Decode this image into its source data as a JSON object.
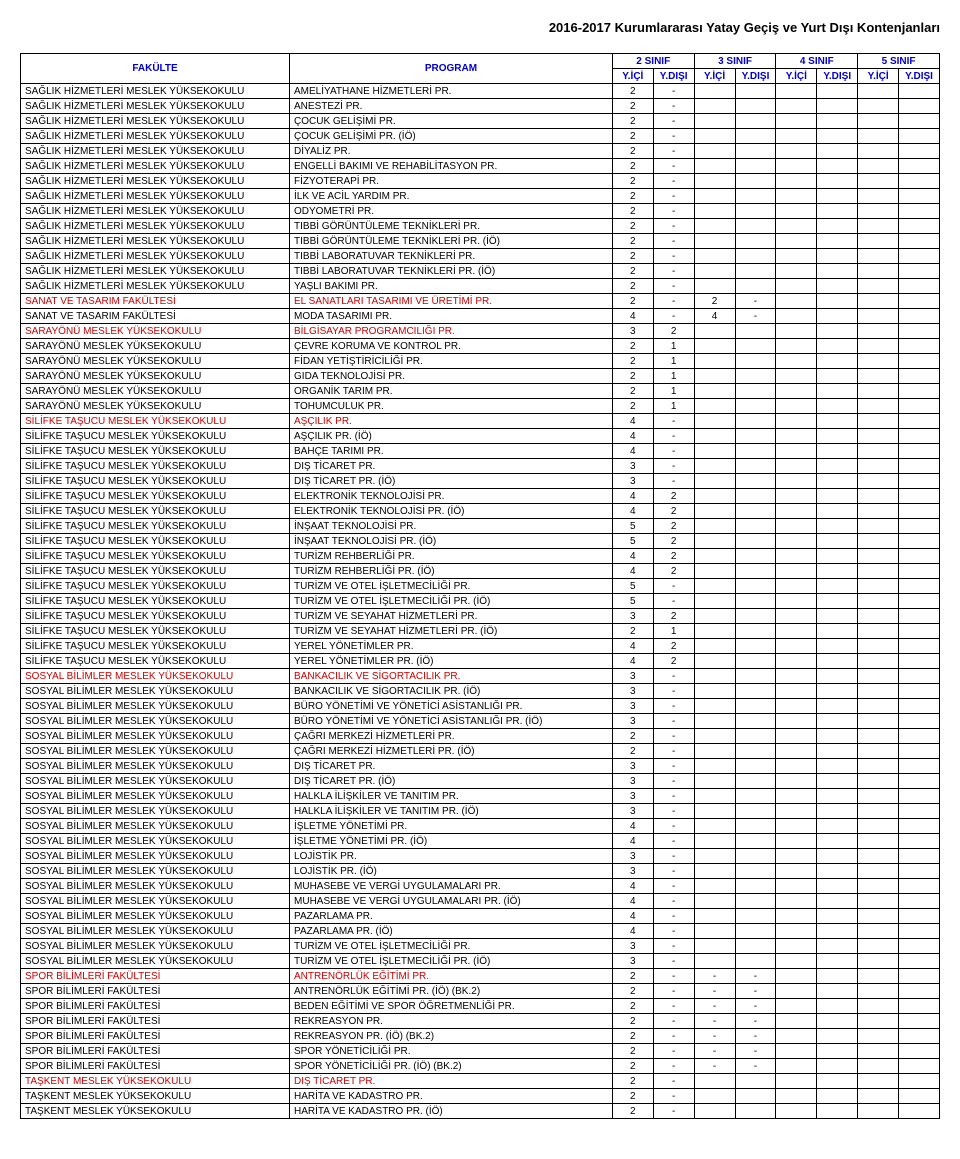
{
  "document_title": "2016-2017 Kurumlararası Yatay Geçiş ve Yurt Dışı Kontenjanları",
  "header": {
    "fakulte": "FAKÜLTE",
    "program": "PROGRAM",
    "sinif2": "2 SINIF",
    "sinif3": "3 SINIF",
    "sinif4": "4 SINIF",
    "sinif5": "5 SINIF",
    "yici": "Y.İÇİ",
    "ydisi": "Y.DIŞI"
  },
  "rows": [
    {
      "f": "SAĞLIK HİZMETLERİ MESLEK YÜKSEKOKULU",
      "p": "AMELİYATHANE HİZMETLERİ PR.",
      "red": false,
      "c2i": "2",
      "c2d": "-",
      "c3i": "",
      "c3d": "",
      "c4i": "",
      "c4d": "",
      "c5i": "",
      "c5d": ""
    },
    {
      "f": "SAĞLIK HİZMETLERİ MESLEK YÜKSEKOKULU",
      "p": "ANESTEZİ PR.",
      "red": false,
      "c2i": "2",
      "c2d": "-",
      "c3i": "",
      "c3d": "",
      "c4i": "",
      "c4d": "",
      "c5i": "",
      "c5d": ""
    },
    {
      "f": "SAĞLIK HİZMETLERİ MESLEK YÜKSEKOKULU",
      "p": "ÇOCUK GELİŞİMİ PR.",
      "red": false,
      "c2i": "2",
      "c2d": "-",
      "c3i": "",
      "c3d": "",
      "c4i": "",
      "c4d": "",
      "c5i": "",
      "c5d": ""
    },
    {
      "f": "SAĞLIK HİZMETLERİ MESLEK YÜKSEKOKULU",
      "p": "ÇOCUK GELİŞİMİ PR. (İÖ)",
      "red": false,
      "c2i": "2",
      "c2d": "-",
      "c3i": "",
      "c3d": "",
      "c4i": "",
      "c4d": "",
      "c5i": "",
      "c5d": ""
    },
    {
      "f": "SAĞLIK HİZMETLERİ MESLEK YÜKSEKOKULU",
      "p": "DİYALİZ PR.",
      "red": false,
      "c2i": "2",
      "c2d": "-",
      "c3i": "",
      "c3d": "",
      "c4i": "",
      "c4d": "",
      "c5i": "",
      "c5d": ""
    },
    {
      "f": "SAĞLIK HİZMETLERİ MESLEK YÜKSEKOKULU",
      "p": "ENGELLİ BAKIMI VE REHABİLİTASYON PR.",
      "red": false,
      "c2i": "2",
      "c2d": "-",
      "c3i": "",
      "c3d": "",
      "c4i": "",
      "c4d": "",
      "c5i": "",
      "c5d": ""
    },
    {
      "f": "SAĞLIK HİZMETLERİ MESLEK YÜKSEKOKULU",
      "p": "FİZYOTERAPİ PR.",
      "red": false,
      "c2i": "2",
      "c2d": "-",
      "c3i": "",
      "c3d": "",
      "c4i": "",
      "c4d": "",
      "c5i": "",
      "c5d": ""
    },
    {
      "f": "SAĞLIK HİZMETLERİ MESLEK YÜKSEKOKULU",
      "p": "İLK VE ACİL YARDIM PR.",
      "red": false,
      "c2i": "2",
      "c2d": "-",
      "c3i": "",
      "c3d": "",
      "c4i": "",
      "c4d": "",
      "c5i": "",
      "c5d": ""
    },
    {
      "f": "SAĞLIK HİZMETLERİ MESLEK YÜKSEKOKULU",
      "p": "ODYOMETRİ PR.",
      "red": false,
      "c2i": "2",
      "c2d": "-",
      "c3i": "",
      "c3d": "",
      "c4i": "",
      "c4d": "",
      "c5i": "",
      "c5d": ""
    },
    {
      "f": "SAĞLIK HİZMETLERİ MESLEK YÜKSEKOKULU",
      "p": "TIBBİ GÖRÜNTÜLEME TEKNİKLERİ PR.",
      "red": false,
      "c2i": "2",
      "c2d": "-",
      "c3i": "",
      "c3d": "",
      "c4i": "",
      "c4d": "",
      "c5i": "",
      "c5d": ""
    },
    {
      "f": "SAĞLIK HİZMETLERİ MESLEK YÜKSEKOKULU",
      "p": "TIBBİ GÖRÜNTÜLEME TEKNİKLERİ PR. (İÖ)",
      "red": false,
      "c2i": "2",
      "c2d": "-",
      "c3i": "",
      "c3d": "",
      "c4i": "",
      "c4d": "",
      "c5i": "",
      "c5d": ""
    },
    {
      "f": "SAĞLIK HİZMETLERİ MESLEK YÜKSEKOKULU",
      "p": "TIBBİ LABORATUVAR TEKNİKLERİ PR.",
      "red": false,
      "c2i": "2",
      "c2d": "-",
      "c3i": "",
      "c3d": "",
      "c4i": "",
      "c4d": "",
      "c5i": "",
      "c5d": ""
    },
    {
      "f": "SAĞLIK HİZMETLERİ MESLEK YÜKSEKOKULU",
      "p": "TIBBİ LABORATUVAR TEKNİKLERİ PR. (İÖ)",
      "red": false,
      "c2i": "2",
      "c2d": "-",
      "c3i": "",
      "c3d": "",
      "c4i": "",
      "c4d": "",
      "c5i": "",
      "c5d": ""
    },
    {
      "f": "SAĞLIK HİZMETLERİ MESLEK YÜKSEKOKULU",
      "p": "YAŞLI BAKIMI PR.",
      "red": false,
      "c2i": "2",
      "c2d": "-",
      "c3i": "",
      "c3d": "",
      "c4i": "",
      "c4d": "",
      "c5i": "",
      "c5d": ""
    },
    {
      "f": "SANAT VE TASARIM FAKÜLTESİ",
      "p": "EL SANATLARI TASARIMI VE ÜRETİMİ PR.",
      "red": true,
      "c2i": "2",
      "c2d": "-",
      "c3i": "2",
      "c3d": "-",
      "c4i": "",
      "c4d": "",
      "c5i": "",
      "c5d": ""
    },
    {
      "f": "SANAT VE TASARIM FAKÜLTESİ",
      "p": "MODA TASARIMI PR.",
      "red": false,
      "c2i": "4",
      "c2d": "-",
      "c3i": "4",
      "c3d": "-",
      "c4i": "",
      "c4d": "",
      "c5i": "",
      "c5d": ""
    },
    {
      "f": "SARAYÖNÜ MESLEK YÜKSEKOKULU",
      "p": "BİLGİSAYAR PROGRAMCILIĞI PR.",
      "red": true,
      "c2i": "3",
      "c2d": "2",
      "c3i": "",
      "c3d": "",
      "c4i": "",
      "c4d": "",
      "c5i": "",
      "c5d": ""
    },
    {
      "f": "SARAYÖNÜ MESLEK YÜKSEKOKULU",
      "p": "ÇEVRE KORUMA VE KONTROL PR.",
      "red": false,
      "c2i": "2",
      "c2d": "1",
      "c3i": "",
      "c3d": "",
      "c4i": "",
      "c4d": "",
      "c5i": "",
      "c5d": ""
    },
    {
      "f": "SARAYÖNÜ MESLEK YÜKSEKOKULU",
      "p": "FİDAN YETİŞTİRİCİLİĞİ PR.",
      "red": false,
      "c2i": "2",
      "c2d": "1",
      "c3i": "",
      "c3d": "",
      "c4i": "",
      "c4d": "",
      "c5i": "",
      "c5d": ""
    },
    {
      "f": "SARAYÖNÜ MESLEK YÜKSEKOKULU",
      "p": "GIDA TEKNOLOJİSİ PR.",
      "red": false,
      "c2i": "2",
      "c2d": "1",
      "c3i": "",
      "c3d": "",
      "c4i": "",
      "c4d": "",
      "c5i": "",
      "c5d": ""
    },
    {
      "f": "SARAYÖNÜ MESLEK YÜKSEKOKULU",
      "p": "ORGANİK TARIM PR.",
      "red": false,
      "c2i": "2",
      "c2d": "1",
      "c3i": "",
      "c3d": "",
      "c4i": "",
      "c4d": "",
      "c5i": "",
      "c5d": ""
    },
    {
      "f": "SARAYÖNÜ MESLEK YÜKSEKOKULU",
      "p": "TOHUMCULUK PR.",
      "red": false,
      "c2i": "2",
      "c2d": "1",
      "c3i": "",
      "c3d": "",
      "c4i": "",
      "c4d": "",
      "c5i": "",
      "c5d": ""
    },
    {
      "f": "SİLİFKE TAŞUCU MESLEK YÜKSEKOKULU",
      "p": "AŞÇILIK PR.",
      "red": true,
      "c2i": "4",
      "c2d": "-",
      "c3i": "",
      "c3d": "",
      "c4i": "",
      "c4d": "",
      "c5i": "",
      "c5d": ""
    },
    {
      "f": "SİLİFKE TAŞUCU MESLEK YÜKSEKOKULU",
      "p": "AŞÇILIK PR. (İÖ)",
      "red": false,
      "c2i": "4",
      "c2d": "-",
      "c3i": "",
      "c3d": "",
      "c4i": "",
      "c4d": "",
      "c5i": "",
      "c5d": ""
    },
    {
      "f": "SİLİFKE TAŞUCU MESLEK YÜKSEKOKULU",
      "p": "BAHÇE TARIMI PR.",
      "red": false,
      "c2i": "4",
      "c2d": "-",
      "c3i": "",
      "c3d": "",
      "c4i": "",
      "c4d": "",
      "c5i": "",
      "c5d": ""
    },
    {
      "f": "SİLİFKE TAŞUCU MESLEK YÜKSEKOKULU",
      "p": "DIŞ TİCARET PR.",
      "red": false,
      "c2i": "3",
      "c2d": "-",
      "c3i": "",
      "c3d": "",
      "c4i": "",
      "c4d": "",
      "c5i": "",
      "c5d": ""
    },
    {
      "f": "SİLİFKE TAŞUCU MESLEK YÜKSEKOKULU",
      "p": "DIŞ TİCARET PR. (İÖ)",
      "red": false,
      "c2i": "3",
      "c2d": "-",
      "c3i": "",
      "c3d": "",
      "c4i": "",
      "c4d": "",
      "c5i": "",
      "c5d": ""
    },
    {
      "f": "SİLİFKE TAŞUCU MESLEK YÜKSEKOKULU",
      "p": "ELEKTRONİK TEKNOLOJİSİ PR.",
      "red": false,
      "c2i": "4",
      "c2d": "2",
      "c3i": "",
      "c3d": "",
      "c4i": "",
      "c4d": "",
      "c5i": "",
      "c5d": ""
    },
    {
      "f": "SİLİFKE TAŞUCU MESLEK YÜKSEKOKULU",
      "p": "ELEKTRONİK TEKNOLOJİSİ PR. (İÖ)",
      "red": false,
      "c2i": "4",
      "c2d": "2",
      "c3i": "",
      "c3d": "",
      "c4i": "",
      "c4d": "",
      "c5i": "",
      "c5d": ""
    },
    {
      "f": "SİLİFKE TAŞUCU MESLEK YÜKSEKOKULU",
      "p": "İNŞAAT TEKNOLOJİSİ PR.",
      "red": false,
      "c2i": "5",
      "c2d": "2",
      "c3i": "",
      "c3d": "",
      "c4i": "",
      "c4d": "",
      "c5i": "",
      "c5d": ""
    },
    {
      "f": "SİLİFKE TAŞUCU MESLEK YÜKSEKOKULU",
      "p": "İNŞAAT TEKNOLOJİSİ PR. (İÖ)",
      "red": false,
      "c2i": "5",
      "c2d": "2",
      "c3i": "",
      "c3d": "",
      "c4i": "",
      "c4d": "",
      "c5i": "",
      "c5d": ""
    },
    {
      "f": "SİLİFKE TAŞUCU MESLEK YÜKSEKOKULU",
      "p": "TURİZM REHBERLİĞİ PR.",
      "red": false,
      "c2i": "4",
      "c2d": "2",
      "c3i": "",
      "c3d": "",
      "c4i": "",
      "c4d": "",
      "c5i": "",
      "c5d": ""
    },
    {
      "f": "SİLİFKE TAŞUCU MESLEK YÜKSEKOKULU",
      "p": "TURİZM REHBERLİĞİ PR. (İÖ)",
      "red": false,
      "c2i": "4",
      "c2d": "2",
      "c3i": "",
      "c3d": "",
      "c4i": "",
      "c4d": "",
      "c5i": "",
      "c5d": ""
    },
    {
      "f": "SİLİFKE TAŞUCU MESLEK YÜKSEKOKULU",
      "p": "TURİZM VE OTEL İŞLETMECİLİĞİ PR.",
      "red": false,
      "c2i": "5",
      "c2d": "-",
      "c3i": "",
      "c3d": "",
      "c4i": "",
      "c4d": "",
      "c5i": "",
      "c5d": ""
    },
    {
      "f": "SİLİFKE TAŞUCU MESLEK YÜKSEKOKULU",
      "p": "TURİZM VE OTEL İŞLETMECİLİĞİ PR. (İÖ)",
      "red": false,
      "c2i": "5",
      "c2d": "-",
      "c3i": "",
      "c3d": "",
      "c4i": "",
      "c4d": "",
      "c5i": "",
      "c5d": ""
    },
    {
      "f": "SİLİFKE TAŞUCU MESLEK YÜKSEKOKULU",
      "p": "TURİZM VE SEYAHAT HİZMETLERİ PR.",
      "red": false,
      "c2i": "3",
      "c2d": "2",
      "c3i": "",
      "c3d": "",
      "c4i": "",
      "c4d": "",
      "c5i": "",
      "c5d": ""
    },
    {
      "f": "SİLİFKE TAŞUCU MESLEK YÜKSEKOKULU",
      "p": "TURİZM VE SEYAHAT HİZMETLERİ PR. (İÖ)",
      "red": false,
      "c2i": "2",
      "c2d": "1",
      "c3i": "",
      "c3d": "",
      "c4i": "",
      "c4d": "",
      "c5i": "",
      "c5d": ""
    },
    {
      "f": "SİLİFKE TAŞUCU MESLEK YÜKSEKOKULU",
      "p": "YEREL YÖNETİMLER PR.",
      "red": false,
      "c2i": "4",
      "c2d": "2",
      "c3i": "",
      "c3d": "",
      "c4i": "",
      "c4d": "",
      "c5i": "",
      "c5d": ""
    },
    {
      "f": "SİLİFKE TAŞUCU MESLEK YÜKSEKOKULU",
      "p": "YEREL YÖNETİMLER PR. (İÖ)",
      "red": false,
      "c2i": "4",
      "c2d": "2",
      "c3i": "",
      "c3d": "",
      "c4i": "",
      "c4d": "",
      "c5i": "",
      "c5d": ""
    },
    {
      "f": "SOSYAL BİLİMLER MESLEK YÜKSEKOKULU",
      "p": "BANKACILIK VE SİGORTACILIK PR.",
      "red": true,
      "c2i": "3",
      "c2d": "-",
      "c3i": "",
      "c3d": "",
      "c4i": "",
      "c4d": "",
      "c5i": "",
      "c5d": ""
    },
    {
      "f": "SOSYAL BİLİMLER MESLEK YÜKSEKOKULU",
      "p": "BANKACILIK VE SİGORTACILIK PR. (İÖ)",
      "red": false,
      "c2i": "3",
      "c2d": "-",
      "c3i": "",
      "c3d": "",
      "c4i": "",
      "c4d": "",
      "c5i": "",
      "c5d": ""
    },
    {
      "f": "SOSYAL BİLİMLER MESLEK YÜKSEKOKULU",
      "p": "BÜRO YÖNETİMİ VE YÖNETİCİ ASİSTANLIĞI PR.",
      "red": false,
      "c2i": "3",
      "c2d": "-",
      "c3i": "",
      "c3d": "",
      "c4i": "",
      "c4d": "",
      "c5i": "",
      "c5d": ""
    },
    {
      "f": "SOSYAL BİLİMLER MESLEK YÜKSEKOKULU",
      "p": "BÜRO YÖNETİMİ VE YÖNETİCİ ASİSTANLIĞI PR. (İÖ)",
      "red": false,
      "c2i": "3",
      "c2d": "-",
      "c3i": "",
      "c3d": "",
      "c4i": "",
      "c4d": "",
      "c5i": "",
      "c5d": ""
    },
    {
      "f": "SOSYAL BİLİMLER MESLEK YÜKSEKOKULU",
      "p": "ÇAĞRI MERKEZİ HİZMETLERİ PR.",
      "red": false,
      "c2i": "2",
      "c2d": "-",
      "c3i": "",
      "c3d": "",
      "c4i": "",
      "c4d": "",
      "c5i": "",
      "c5d": ""
    },
    {
      "f": "SOSYAL BİLİMLER MESLEK YÜKSEKOKULU",
      "p": "ÇAĞRI MERKEZİ HİZMETLERİ PR. (İÖ)",
      "red": false,
      "c2i": "2",
      "c2d": "-",
      "c3i": "",
      "c3d": "",
      "c4i": "",
      "c4d": "",
      "c5i": "",
      "c5d": ""
    },
    {
      "f": "SOSYAL BİLİMLER MESLEK YÜKSEKOKULU",
      "p": "DIŞ TİCARET PR.",
      "red": false,
      "c2i": "3",
      "c2d": "-",
      "c3i": "",
      "c3d": "",
      "c4i": "",
      "c4d": "",
      "c5i": "",
      "c5d": ""
    },
    {
      "f": "SOSYAL BİLİMLER MESLEK YÜKSEKOKULU",
      "p": "DIŞ TİCARET PR. (İÖ)",
      "red": false,
      "c2i": "3",
      "c2d": "-",
      "c3i": "",
      "c3d": "",
      "c4i": "",
      "c4d": "",
      "c5i": "",
      "c5d": ""
    },
    {
      "f": "SOSYAL BİLİMLER MESLEK YÜKSEKOKULU",
      "p": "HALKLA İLİŞKİLER VE TANITIM PR.",
      "red": false,
      "c2i": "3",
      "c2d": "-",
      "c3i": "",
      "c3d": "",
      "c4i": "",
      "c4d": "",
      "c5i": "",
      "c5d": ""
    },
    {
      "f": "SOSYAL BİLİMLER MESLEK YÜKSEKOKULU",
      "p": "HALKLA İLİŞKİLER VE TANITIM PR. (İÖ)",
      "red": false,
      "c2i": "3",
      "c2d": "-",
      "c3i": "",
      "c3d": "",
      "c4i": "",
      "c4d": "",
      "c5i": "",
      "c5d": ""
    },
    {
      "f": "SOSYAL BİLİMLER MESLEK YÜKSEKOKULU",
      "p": "İŞLETME YÖNETİMİ PR.",
      "red": false,
      "c2i": "4",
      "c2d": "-",
      "c3i": "",
      "c3d": "",
      "c4i": "",
      "c4d": "",
      "c5i": "",
      "c5d": ""
    },
    {
      "f": "SOSYAL BİLİMLER MESLEK YÜKSEKOKULU",
      "p": "İŞLETME YÖNETİMİ PR. (İÖ)",
      "red": false,
      "c2i": "4",
      "c2d": "-",
      "c3i": "",
      "c3d": "",
      "c4i": "",
      "c4d": "",
      "c5i": "",
      "c5d": ""
    },
    {
      "f": "SOSYAL BİLİMLER MESLEK YÜKSEKOKULU",
      "p": "LOJİSTİK PR.",
      "red": false,
      "c2i": "3",
      "c2d": "-",
      "c3i": "",
      "c3d": "",
      "c4i": "",
      "c4d": "",
      "c5i": "",
      "c5d": ""
    },
    {
      "f": "SOSYAL BİLİMLER MESLEK YÜKSEKOKULU",
      "p": "LOJİSTİK PR. (İÖ)",
      "red": false,
      "c2i": "3",
      "c2d": "-",
      "c3i": "",
      "c3d": "",
      "c4i": "",
      "c4d": "",
      "c5i": "",
      "c5d": ""
    },
    {
      "f": "SOSYAL BİLİMLER MESLEK YÜKSEKOKULU",
      "p": "MUHASEBE VE VERGİ UYGULAMALARI PR.",
      "red": false,
      "c2i": "4",
      "c2d": "-",
      "c3i": "",
      "c3d": "",
      "c4i": "",
      "c4d": "",
      "c5i": "",
      "c5d": ""
    },
    {
      "f": "SOSYAL BİLİMLER MESLEK YÜKSEKOKULU",
      "p": "MUHASEBE VE VERGİ UYGULAMALARI PR. (İÖ)",
      "red": false,
      "c2i": "4",
      "c2d": "-",
      "c3i": "",
      "c3d": "",
      "c4i": "",
      "c4d": "",
      "c5i": "",
      "c5d": ""
    },
    {
      "f": "SOSYAL BİLİMLER MESLEK YÜKSEKOKULU",
      "p": "PAZARLAMA PR.",
      "red": false,
      "c2i": "4",
      "c2d": "-",
      "c3i": "",
      "c3d": "",
      "c4i": "",
      "c4d": "",
      "c5i": "",
      "c5d": ""
    },
    {
      "f": "SOSYAL BİLİMLER MESLEK YÜKSEKOKULU",
      "p": "PAZARLAMA PR. (İÖ)",
      "red": false,
      "c2i": "4",
      "c2d": "-",
      "c3i": "",
      "c3d": "",
      "c4i": "",
      "c4d": "",
      "c5i": "",
      "c5d": ""
    },
    {
      "f": "SOSYAL BİLİMLER MESLEK YÜKSEKOKULU",
      "p": "TURİZM VE OTEL İŞLETMECİLİĞİ PR.",
      "red": false,
      "c2i": "3",
      "c2d": "-",
      "c3i": "",
      "c3d": "",
      "c4i": "",
      "c4d": "",
      "c5i": "",
      "c5d": ""
    },
    {
      "f": "SOSYAL BİLİMLER MESLEK YÜKSEKOKULU",
      "p": "TURİZM VE OTEL İŞLETMECİLİĞİ PR. (İÖ)",
      "red": false,
      "c2i": "3",
      "c2d": "-",
      "c3i": "",
      "c3d": "",
      "c4i": "",
      "c4d": "",
      "c5i": "",
      "c5d": ""
    },
    {
      "f": "SPOR BİLİMLERİ FAKÜLTESİ",
      "p": "ANTRENÖRLÜK EĞİTİMİ PR.",
      "red": true,
      "c2i": "2",
      "c2d": "-",
      "c3i": "-",
      "c3d": "-",
      "c4i": "",
      "c4d": "",
      "c5i": "",
      "c5d": ""
    },
    {
      "f": "SPOR BİLİMLERİ FAKÜLTESİ",
      "p": "ANTRENÖRLÜK EĞİTİMİ PR. (İÖ) (BK.2)",
      "red": false,
      "c2i": "2",
      "c2d": "-",
      "c3i": "-",
      "c3d": "-",
      "c4i": "",
      "c4d": "",
      "c5i": "",
      "c5d": ""
    },
    {
      "f": "SPOR BİLİMLERİ FAKÜLTESİ",
      "p": "BEDEN EĞİTİMİ VE SPOR ÖĞRETMENLİĞİ PR.",
      "red": false,
      "c2i": "2",
      "c2d": "-",
      "c3i": "-",
      "c3d": "-",
      "c4i": "",
      "c4d": "",
      "c5i": "",
      "c5d": ""
    },
    {
      "f": "SPOR BİLİMLERİ FAKÜLTESİ",
      "p": "REKREASYON PR.",
      "red": false,
      "c2i": "2",
      "c2d": "-",
      "c3i": "-",
      "c3d": "-",
      "c4i": "",
      "c4d": "",
      "c5i": "",
      "c5d": ""
    },
    {
      "f": "SPOR BİLİMLERİ FAKÜLTESİ",
      "p": "REKREASYON PR. (İÖ) (BK.2)",
      "red": false,
      "c2i": "2",
      "c2d": "-",
      "c3i": "-",
      "c3d": "-",
      "c4i": "",
      "c4d": "",
      "c5i": "",
      "c5d": ""
    },
    {
      "f": "SPOR BİLİMLERİ FAKÜLTESİ",
      "p": "SPOR YÖNETİCİLİĞİ PR.",
      "red": false,
      "c2i": "2",
      "c2d": "-",
      "c3i": "-",
      "c3d": "-",
      "c4i": "",
      "c4d": "",
      "c5i": "",
      "c5d": ""
    },
    {
      "f": "SPOR BİLİMLERİ FAKÜLTESİ",
      "p": "SPOR YÖNETİCİLİĞİ PR. (İÖ) (BK.2)",
      "red": false,
      "c2i": "2",
      "c2d": "-",
      "c3i": "-",
      "c3d": "-",
      "c4i": "",
      "c4d": "",
      "c5i": "",
      "c5d": ""
    },
    {
      "f": "TAŞKENT MESLEK YÜKSEKOKULU",
      "p": "DIŞ TİCARET PR.",
      "red": true,
      "c2i": "2",
      "c2d": "-",
      "c3i": "",
      "c3d": "",
      "c4i": "",
      "c4d": "",
      "c5i": "",
      "c5d": ""
    },
    {
      "f": "TAŞKENT MESLEK YÜKSEKOKULU",
      "p": "HARİTA VE KADASTRO PR.",
      "red": false,
      "c2i": "2",
      "c2d": "-",
      "c3i": "",
      "c3d": "",
      "c4i": "",
      "c4d": "",
      "c5i": "",
      "c5d": ""
    },
    {
      "f": "TAŞKENT MESLEK YÜKSEKOKULU",
      "p": "HARİTA VE KADASTRO PR. (İÖ)",
      "red": false,
      "c2i": "2",
      "c2d": "-",
      "c3i": "",
      "c3d": "",
      "c4i": "",
      "c4d": "",
      "c5i": "",
      "c5d": ""
    }
  ]
}
